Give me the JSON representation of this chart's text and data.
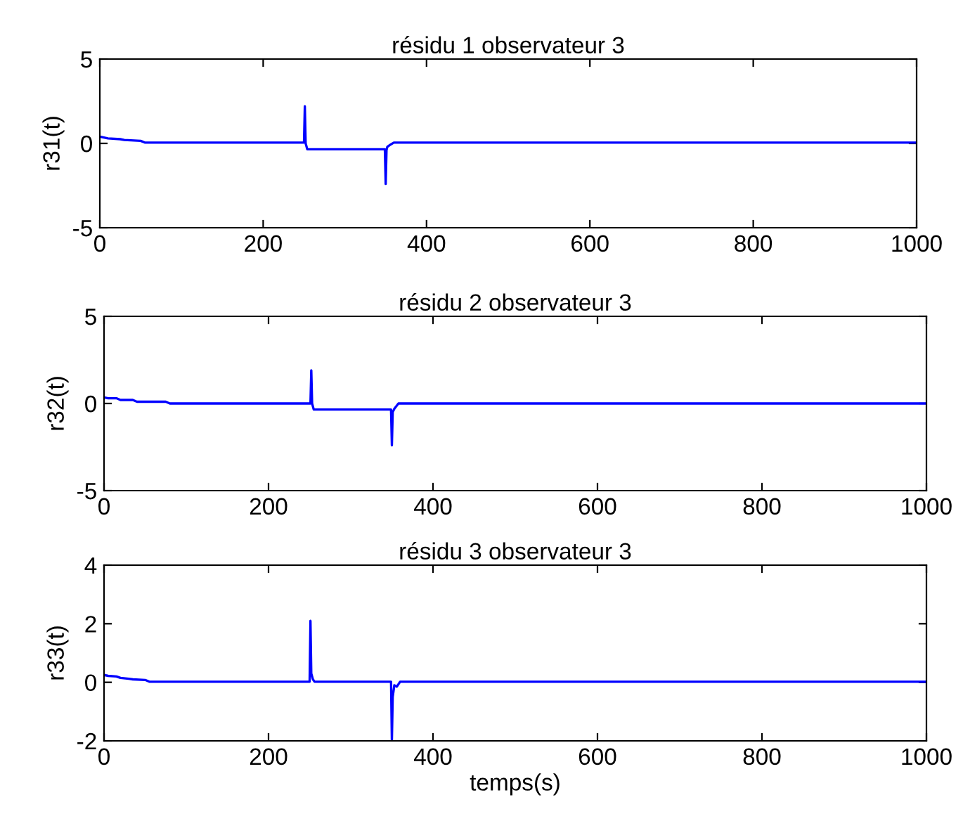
{
  "chart_data": [
    {
      "type": "line",
      "title": "résidu 1 observateur 3",
      "ylabel": "r31(t)",
      "xlim": [
        0,
        1000
      ],
      "xticks": [
        0,
        200,
        400,
        600,
        800,
        1000
      ],
      "ylim": [
        -5,
        5
      ],
      "yticks": [
        -5,
        0,
        5
      ],
      "grid": false,
      "legend": false,
      "series": [
        {
          "color": "#0000ff",
          "x": [
            0,
            5,
            10,
            25,
            30,
            50,
            55,
            250,
            251,
            252,
            254,
            349,
            350,
            351,
            352,
            355,
            360,
            1000
          ],
          "values": [
            0.4,
            0.35,
            0.3,
            0.25,
            0.2,
            0.15,
            0.05,
            0.05,
            2.2,
            0.0,
            -0.35,
            -0.35,
            -2.4,
            -0.4,
            -0.2,
            -0.1,
            0.05,
            0.05
          ]
        }
      ]
    },
    {
      "type": "line",
      "title": "résidu 2 observateur 3",
      "ylabel": "r32(t)",
      "xlim": [
        0,
        1000
      ],
      "xticks": [
        0,
        200,
        400,
        600,
        800,
        1000
      ],
      "ylim": [
        -5,
        5
      ],
      "yticks": [
        -5,
        0,
        5
      ],
      "grid": false,
      "legend": false,
      "series": [
        {
          "color": "#0000ff",
          "x": [
            0,
            5,
            15,
            20,
            35,
            40,
            75,
            80,
            251,
            252,
            253,
            255,
            349,
            350,
            351,
            353,
            358,
            1000
          ],
          "values": [
            0.35,
            0.3,
            0.3,
            0.2,
            0.2,
            0.1,
            0.1,
            0.0,
            0.0,
            1.9,
            0.0,
            -0.35,
            -0.35,
            -2.4,
            -0.5,
            -0.3,
            0.0,
            0.0
          ]
        }
      ]
    },
    {
      "type": "line",
      "title": "résidu 3 observateur 3",
      "ylabel": "r33(t)",
      "xlabel": "temps(s)",
      "xlim": [
        0,
        1000
      ],
      "xticks": [
        0,
        200,
        400,
        600,
        800,
        1000
      ],
      "ylim": [
        -2,
        4
      ],
      "yticks": [
        -2,
        0,
        2,
        4
      ],
      "grid": false,
      "legend": false,
      "series": [
        {
          "color": "#0000ff",
          "x": [
            0,
            5,
            15,
            20,
            30,
            35,
            50,
            55,
            250,
            251,
            252,
            254,
            256,
            349,
            350,
            351,
            353,
            356,
            360,
            1000
          ],
          "values": [
            0.25,
            0.22,
            0.2,
            0.15,
            0.12,
            0.1,
            0.08,
            0.02,
            0.02,
            2.1,
            0.3,
            0.1,
            0.02,
            0.02,
            -2.0,
            -0.5,
            -0.1,
            -0.15,
            0.02,
            0.02
          ]
        }
      ]
    }
  ]
}
